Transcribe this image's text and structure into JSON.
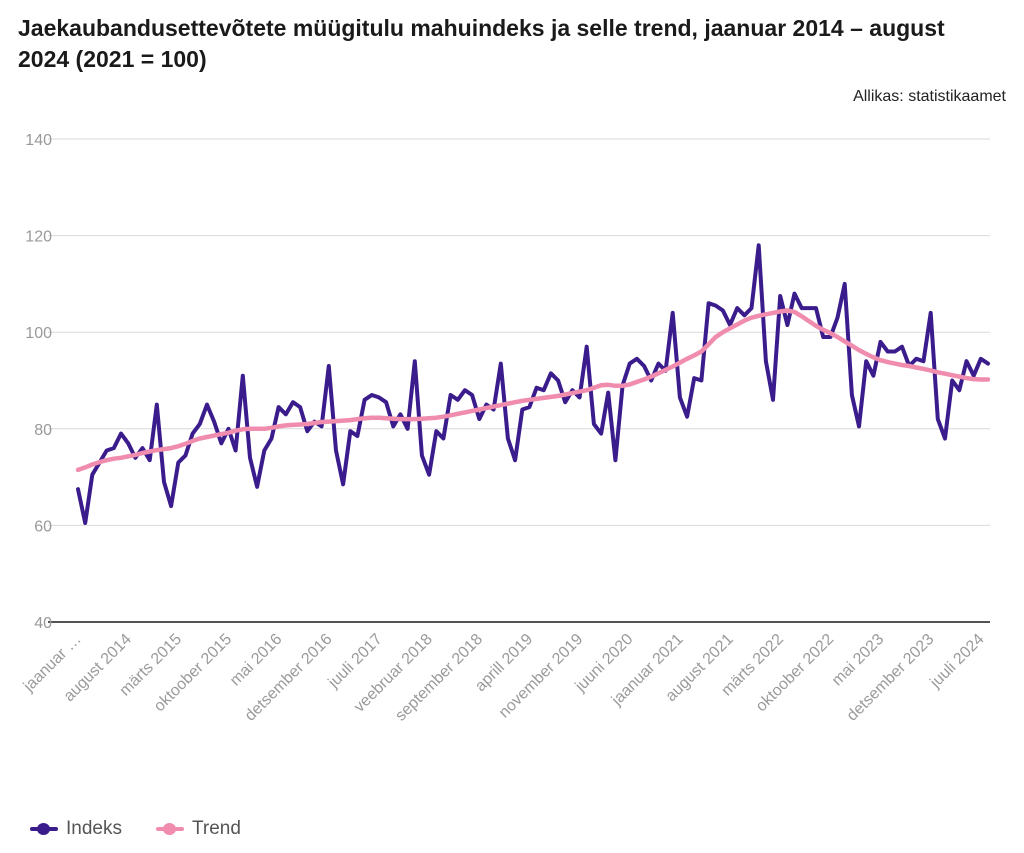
{
  "header": {
    "title": "Jaekaubandusettevõtete müügitulu mahuindeks ja selle trend, jaanuar 2014 – august 2024 (2021 = 100)",
    "source": "Allikas: statistikaamet"
  },
  "colors": {
    "indeks": "#3b1c8c",
    "trend": "#f08cad",
    "grid": "#d9d9d9",
    "axis": "#1a1a1a",
    "tick_text": "#999999"
  },
  "chart_data": {
    "type": "line",
    "title": "Jaekaubandusettevõtete müügitulu mahuindeks ja selle trend, jaanuar 2014 – august 2024 (2021 = 100)",
    "xlabel": "",
    "ylabel": "",
    "ylim": [
      40,
      140
    ],
    "yticks": [
      "40",
      "60",
      "80",
      "100",
      "120",
      "140"
    ],
    "ytick_values": [
      40,
      60,
      80,
      100,
      120,
      140
    ],
    "grid": true,
    "legend_position": "bottom-left",
    "x_start": "2014-01",
    "x_end": "2024-08",
    "x_count": 128,
    "xtick_labels": [
      "jaanuar …",
      "august 2014",
      "märts 2015",
      "oktoober 2015",
      "mai 2016",
      "detsember 2016",
      "juuli 2017",
      "veebruar 2018",
      "september 2018",
      "aprill 2019",
      "november 2019",
      "juuni 2020",
      "jaanuar 2021",
      "august 2021",
      "märts 2022",
      "oktoober 2022",
      "mai 2023",
      "detsember 2023",
      "juuli 2024"
    ],
    "xtick_month_index": [
      0,
      7,
      14,
      21,
      28,
      35,
      42,
      49,
      56,
      63,
      70,
      77,
      84,
      91,
      98,
      105,
      112,
      119,
      126
    ],
    "series": [
      {
        "name": "Indeks",
        "values": [
          67.5,
          60.5,
          70.5,
          73,
          75.5,
          76,
          79,
          77,
          74,
          76,
          73.5,
          85,
          69,
          64,
          73,
          74.5,
          79,
          81,
          85,
          81.5,
          77,
          80,
          75.5,
          91,
          74,
          68,
          75.5,
          78,
          84.5,
          83,
          85.5,
          84.5,
          79.5,
          81.5,
          80.5,
          93,
          75.5,
          68.5,
          79.5,
          78.5,
          86,
          87,
          86.5,
          85.5,
          80.5,
          83,
          80,
          94,
          74.5,
          70.5,
          79.5,
          78,
          87,
          86,
          88,
          87,
          82,
          85,
          84,
          93.5,
          78,
          73.5,
          84,
          84.5,
          88.5,
          88,
          91.5,
          90,
          85.5,
          88,
          86.5,
          97,
          81,
          79,
          87.5,
          73.5,
          89,
          93.5,
          94.5,
          93,
          90,
          93.5,
          92,
          104,
          86.5,
          82.5,
          90.5,
          90,
          106,
          105.5,
          104.5,
          101.5,
          105,
          103.5,
          105,
          118,
          94,
          86,
          107.5,
          101.5,
          108,
          105,
          105,
          105,
          99,
          99,
          103,
          110,
          87,
          80.5,
          94,
          91,
          98,
          96,
          96,
          97,
          93,
          94.5,
          94,
          104,
          82,
          78,
          90,
          88,
          94,
          91,
          94.5,
          93.5
        ]
      },
      {
        "name": "Trend",
        "values": [
          71.5,
          72,
          72.6,
          73.1,
          73.5,
          73.8,
          74,
          74.3,
          74.6,
          75,
          75.3,
          75.6,
          75.8,
          76,
          76.4,
          76.9,
          77.5,
          78,
          78.3,
          78.6,
          78.9,
          79.2,
          79.6,
          79.9,
          80,
          80,
          80,
          80.2,
          80.5,
          80.7,
          80.8,
          80.9,
          81,
          81.2,
          81.4,
          81.5,
          81.6,
          81.7,
          81.8,
          82,
          82.2,
          82.3,
          82.3,
          82.2,
          82.1,
          82,
          82,
          82,
          82.1,
          82.2,
          82.3,
          82.5,
          82.8,
          83.1,
          83.4,
          83.7,
          84,
          84.3,
          84.6,
          84.9,
          85.2,
          85.5,
          85.8,
          86,
          86.2,
          86.4,
          86.6,
          86.8,
          87.1,
          87.4,
          87.7,
          88,
          88.5,
          89,
          89.1,
          88.9,
          88.9,
          89.2,
          89.7,
          90.2,
          90.8,
          91.5,
          92.2,
          92.9,
          93.7,
          94.5,
          95.2,
          96,
          97.5,
          99,
          100,
          100.8,
          101.6,
          102.4,
          103,
          103.4,
          103.7,
          104,
          104.3,
          104.5,
          104.2,
          103.3,
          102.3,
          101.3,
          100.5,
          99.8,
          99,
          98.1,
          97.2,
          96.3,
          95.5,
          94.8,
          94.2,
          93.8,
          93.5,
          93.2,
          93,
          92.7,
          92.4,
          92.1,
          91.7,
          91.4,
          91.1,
          90.8,
          90.5,
          90.3,
          90.2,
          90.2
        ]
      }
    ]
  },
  "legend": {
    "items": [
      {
        "label": "Indeks"
      },
      {
        "label": "Trend"
      }
    ]
  }
}
